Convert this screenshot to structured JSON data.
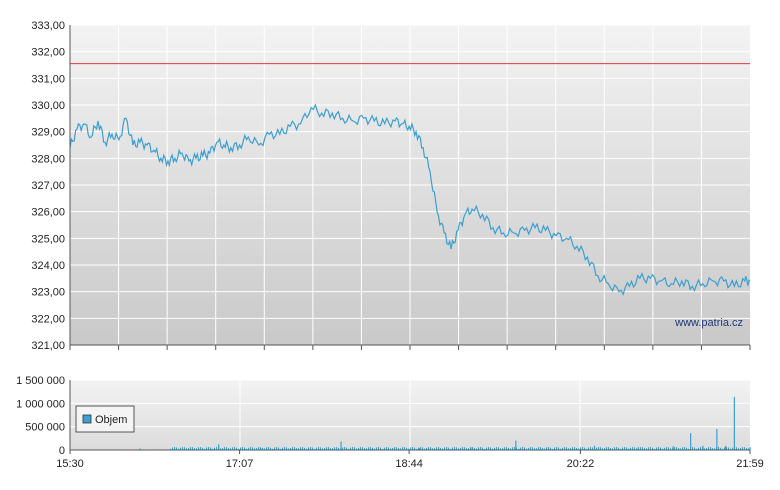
{
  "chart_data": [
    {
      "type": "line",
      "y_ticks": [
        "333,00",
        "332,00",
        "331,00",
        "330,00",
        "329,00",
        "328,00",
        "327,00",
        "326,00",
        "325,00",
        "324,00",
        "323,00",
        "322,00",
        "321,00"
      ],
      "ylim": [
        321,
        333
      ],
      "x_ticks": [
        "15:30",
        "17:07",
        "18:44",
        "20:22",
        "21:59"
      ],
      "reference_line": {
        "value": 331.55,
        "color": "#e03c3c"
      },
      "watermark": "www.patria.cz",
      "line_color": "#3c9fd0",
      "series": [
        {
          "x": [
            "15:30",
            "15:34",
            "15:38",
            "15:42",
            "15:46",
            "15:50",
            "15:54",
            "15:58",
            "16:02",
            "16:06",
            "16:10",
            "16:14",
            "16:18",
            "16:22",
            "16:26",
            "16:30",
            "16:34",
            "16:38",
            "16:42",
            "16:46",
            "16:50",
            "16:54",
            "16:58",
            "17:02",
            "17:07",
            "17:12",
            "17:18",
            "17:24",
            "17:30",
            "17:36",
            "17:42",
            "17:48",
            "17:54",
            "18:00",
            "18:06",
            "18:12",
            "18:18",
            "18:24",
            "18:30",
            "18:36",
            "18:40",
            "18:44",
            "18:48",
            "18:52",
            "18:56",
            "19:00",
            "19:04",
            "19:08",
            "19:12",
            "19:16",
            "19:20",
            "19:26",
            "19:32",
            "19:38",
            "19:44",
            "19:50",
            "19:56",
            "20:02",
            "20:08",
            "20:14",
            "20:20",
            "20:26",
            "20:32",
            "20:38",
            "20:44",
            "20:50",
            "20:56",
            "21:02",
            "21:08",
            "21:14",
            "21:20",
            "21:26",
            "21:32",
            "21:38",
            "21:44",
            "21:50",
            "21:56",
            "21:59"
          ],
          "values": [
            328.4,
            329.1,
            329.3,
            328.8,
            329.4,
            328.6,
            328.9,
            328.7,
            329.5,
            328.5,
            328.6,
            328.5,
            328.3,
            328.0,
            327.9,
            328.0,
            328.2,
            327.9,
            328.0,
            328.1,
            328.2,
            328.6,
            328.5,
            328.4,
            328.5,
            328.8,
            328.5,
            328.9,
            328.9,
            329.2,
            329.3,
            329.9,
            329.7,
            329.7,
            329.5,
            329.4,
            329.5,
            329.4,
            329.3,
            329.4,
            329.3,
            329.2,
            329.0,
            328.4,
            327.5,
            326.0,
            325.2,
            324.6,
            325.3,
            325.9,
            326.1,
            325.9,
            325.4,
            325.2,
            325.2,
            325.3,
            325.4,
            325.3,
            325.1,
            325.0,
            324.7,
            324.3,
            323.6,
            323.3,
            323.0,
            323.2,
            323.5,
            323.5,
            323.4,
            323.3,
            323.4,
            323.2,
            323.3,
            323.4,
            323.4,
            323.2,
            323.4,
            323.4
          ]
        }
      ]
    },
    {
      "type": "bar",
      "y_ticks": [
        "1 500 000",
        "1 000 000",
        "500 000",
        "0"
      ],
      "ylim": [
        0,
        1500000
      ],
      "legend": {
        "label": "Objem",
        "position": "left",
        "color": "#3c9fd0"
      },
      "bar_color": "#3c9fd0",
      "series": [
        {
          "name": "Objem",
          "x": [
            "16:10",
            "16:55",
            "17:20",
            "18:05",
            "18:50",
            "19:20",
            "19:45",
            "20:30",
            "20:55",
            "21:15",
            "21:25",
            "21:32",
            "21:40",
            "21:45",
            "21:50",
            "21:59"
          ],
          "values": [
            30000,
            120000,
            40000,
            180000,
            40000,
            60000,
            200000,
            90000,
            60000,
            80000,
            360000,
            90000,
            450000,
            90000,
            1140000,
            60000
          ]
        }
      ]
    }
  ]
}
